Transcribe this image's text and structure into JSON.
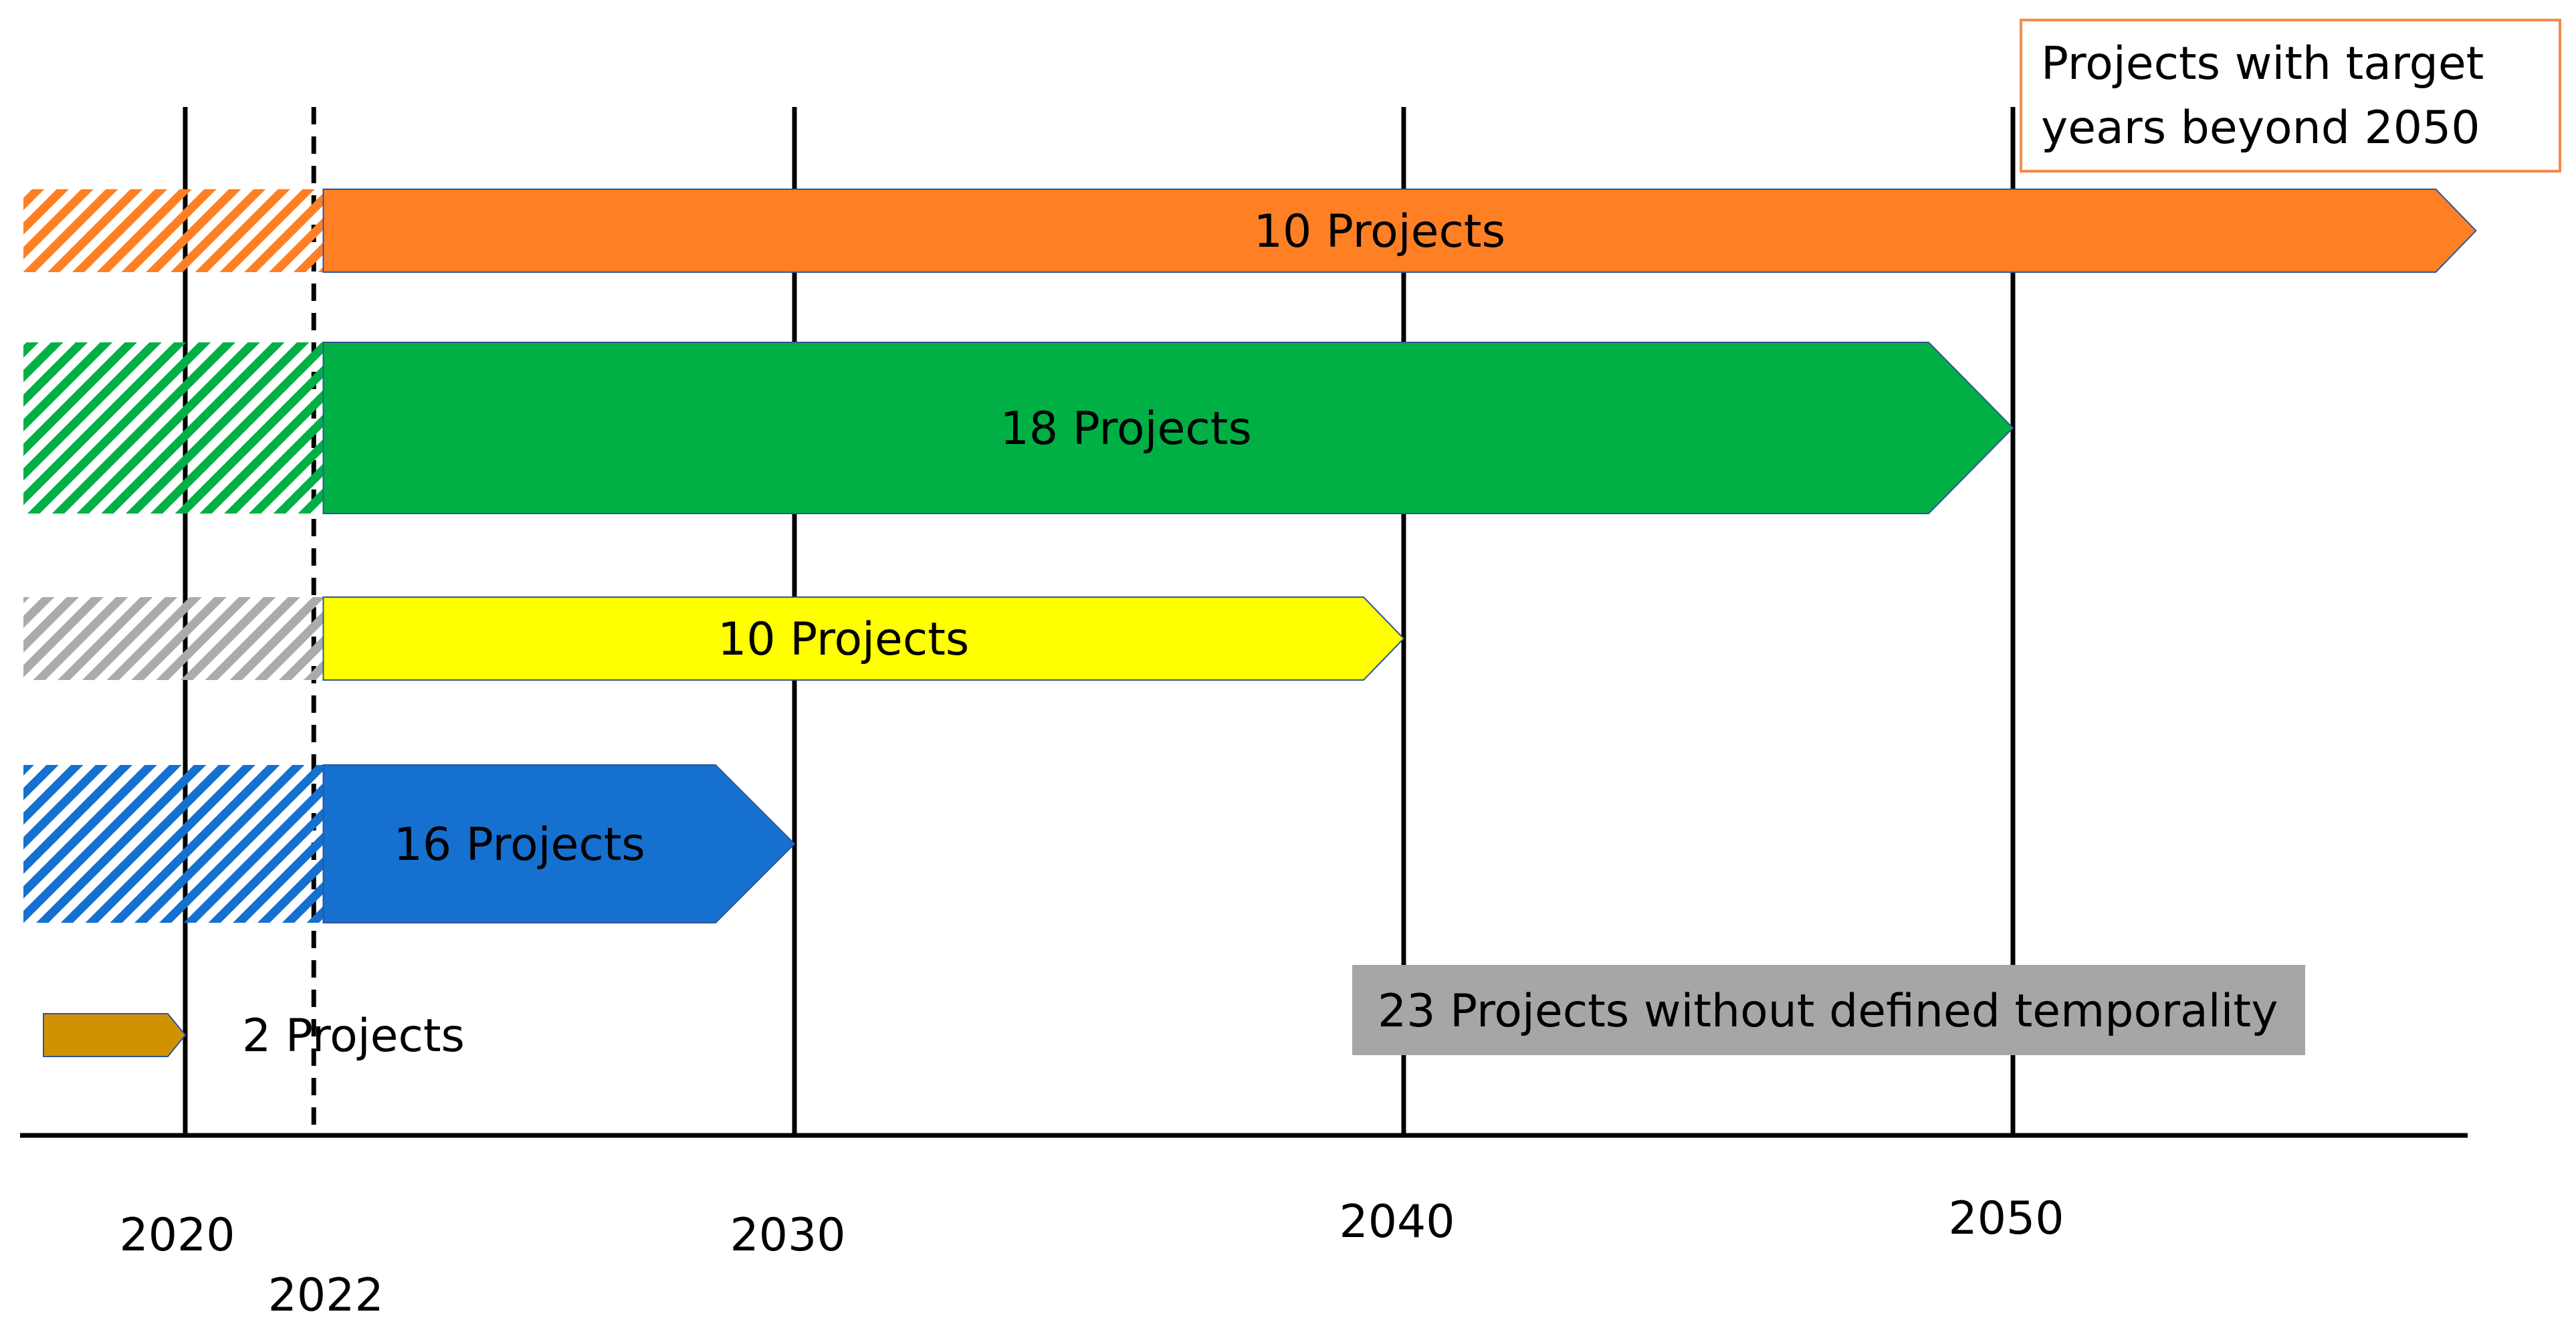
{
  "chart_data": {
    "type": "timeline",
    "x_axis": {
      "ticks": [
        2020,
        2022,
        2030,
        2040,
        2050
      ],
      "tick_labels": [
        "2020",
        "2022",
        "2030",
        "2040",
        "2050"
      ],
      "range": [
        2017.3,
        2057.8
      ],
      "reference_year": 2022
    },
    "grid": "vertical lines at 2020, 2030, 2040, 2050; dashed line at 2022",
    "bars": [
      {
        "label": "10 Projects",
        "start": 2017.3,
        "solid_from": 2022.2,
        "end": 2057.6,
        "color": "#FF8024",
        "hatch_color": "#FF8024"
      },
      {
        "label": "18 Projects",
        "start": 2017.3,
        "solid_from": 2022.2,
        "end": 2050,
        "color": "#00B045",
        "hatch_color": "#00B045"
      },
      {
        "label": "10 Projects",
        "start": 2017.3,
        "solid_from": 2022.2,
        "end": 2040,
        "color": "#FFFF00",
        "hatch_color": "#ABABAB"
      },
      {
        "label": "16 Projects",
        "start": 2017.3,
        "solid_from": 2022.2,
        "end": 2030,
        "color": "#1570D0",
        "hatch_color": "#1570D0"
      },
      {
        "label": "2 Projects",
        "start": 2017.3,
        "end": 2020,
        "color": "#D09200"
      }
    ],
    "annotations": {
      "beyond_2050": "Projects with target years beyond 2050",
      "beyond_2050_lines": [
        "Projects with target",
        "years beyond 2050"
      ],
      "undefined": "23 Projects without defined temporality"
    }
  }
}
